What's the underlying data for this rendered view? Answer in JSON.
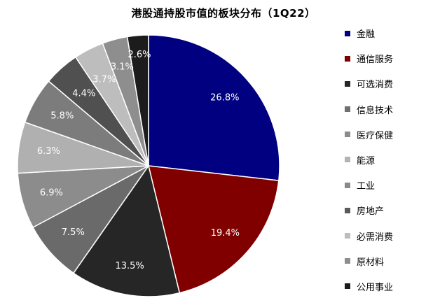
{
  "chart_data": {
    "type": "pie",
    "title": "港股通持股市值的板块分布（1Q22）",
    "legend_position": "right",
    "categories": [
      "金融",
      "通信服务",
      "可选消费",
      "信息技术",
      "医疗保健",
      "能源",
      "工业",
      "房地产",
      "必需消费",
      "原材料",
      "公用事业"
    ],
    "labels": [
      "26.8%",
      "19.4%",
      "13.5%",
      "7.5%",
      "6.9%",
      "6.3%",
      "5.8%",
      "4.4%",
      "3.7%",
      "3.1%",
      "2.6%"
    ],
    "values": [
      26.8,
      19.4,
      13.5,
      7.5,
      6.9,
      6.3,
      5.8,
      4.4,
      3.7,
      3.1,
      2.6
    ],
    "legend_colors": [
      "#000080",
      "#800000",
      "#262626",
      "#6f6f6f",
      "#8c8c8c",
      "#b3b3b3",
      "#8a8a8a",
      "#5a5a5a",
      "#bdbdbd",
      "#8e8e8e",
      "#1c1c1c"
    ],
    "slice_colors": [
      "#000080",
      "#800000",
      "#262626",
      "#6a6a6a",
      "#8c8c8c",
      "#b0b0b0",
      "#7c7c7c",
      "#505050",
      "#bdbdbd",
      "#8e8e8e",
      "#1c1c1c"
    ]
  }
}
